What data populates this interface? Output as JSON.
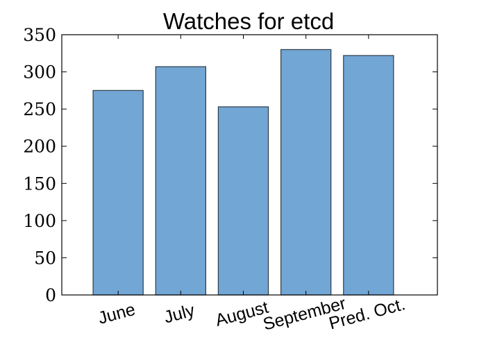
{
  "chart_data": {
    "type": "bar",
    "title": "Watches for etcd",
    "categories": [
      "June",
      "July",
      "August",
      "September",
      "Pred. Oct."
    ],
    "values": [
      275,
      307,
      253,
      330,
      322
    ],
    "xlabel": "",
    "ylabel": "",
    "ylim": [
      0,
      350
    ],
    "yticks": [
      "0",
      "50",
      "100",
      "150",
      "200",
      "250",
      "300",
      "350"
    ],
    "grid": false,
    "legend": "none",
    "colors": {
      "bar_fill": "#72a6d4",
      "bar_edge": "#2d3b47",
      "axis": "#000000",
      "background": "#ffffff"
    }
  }
}
